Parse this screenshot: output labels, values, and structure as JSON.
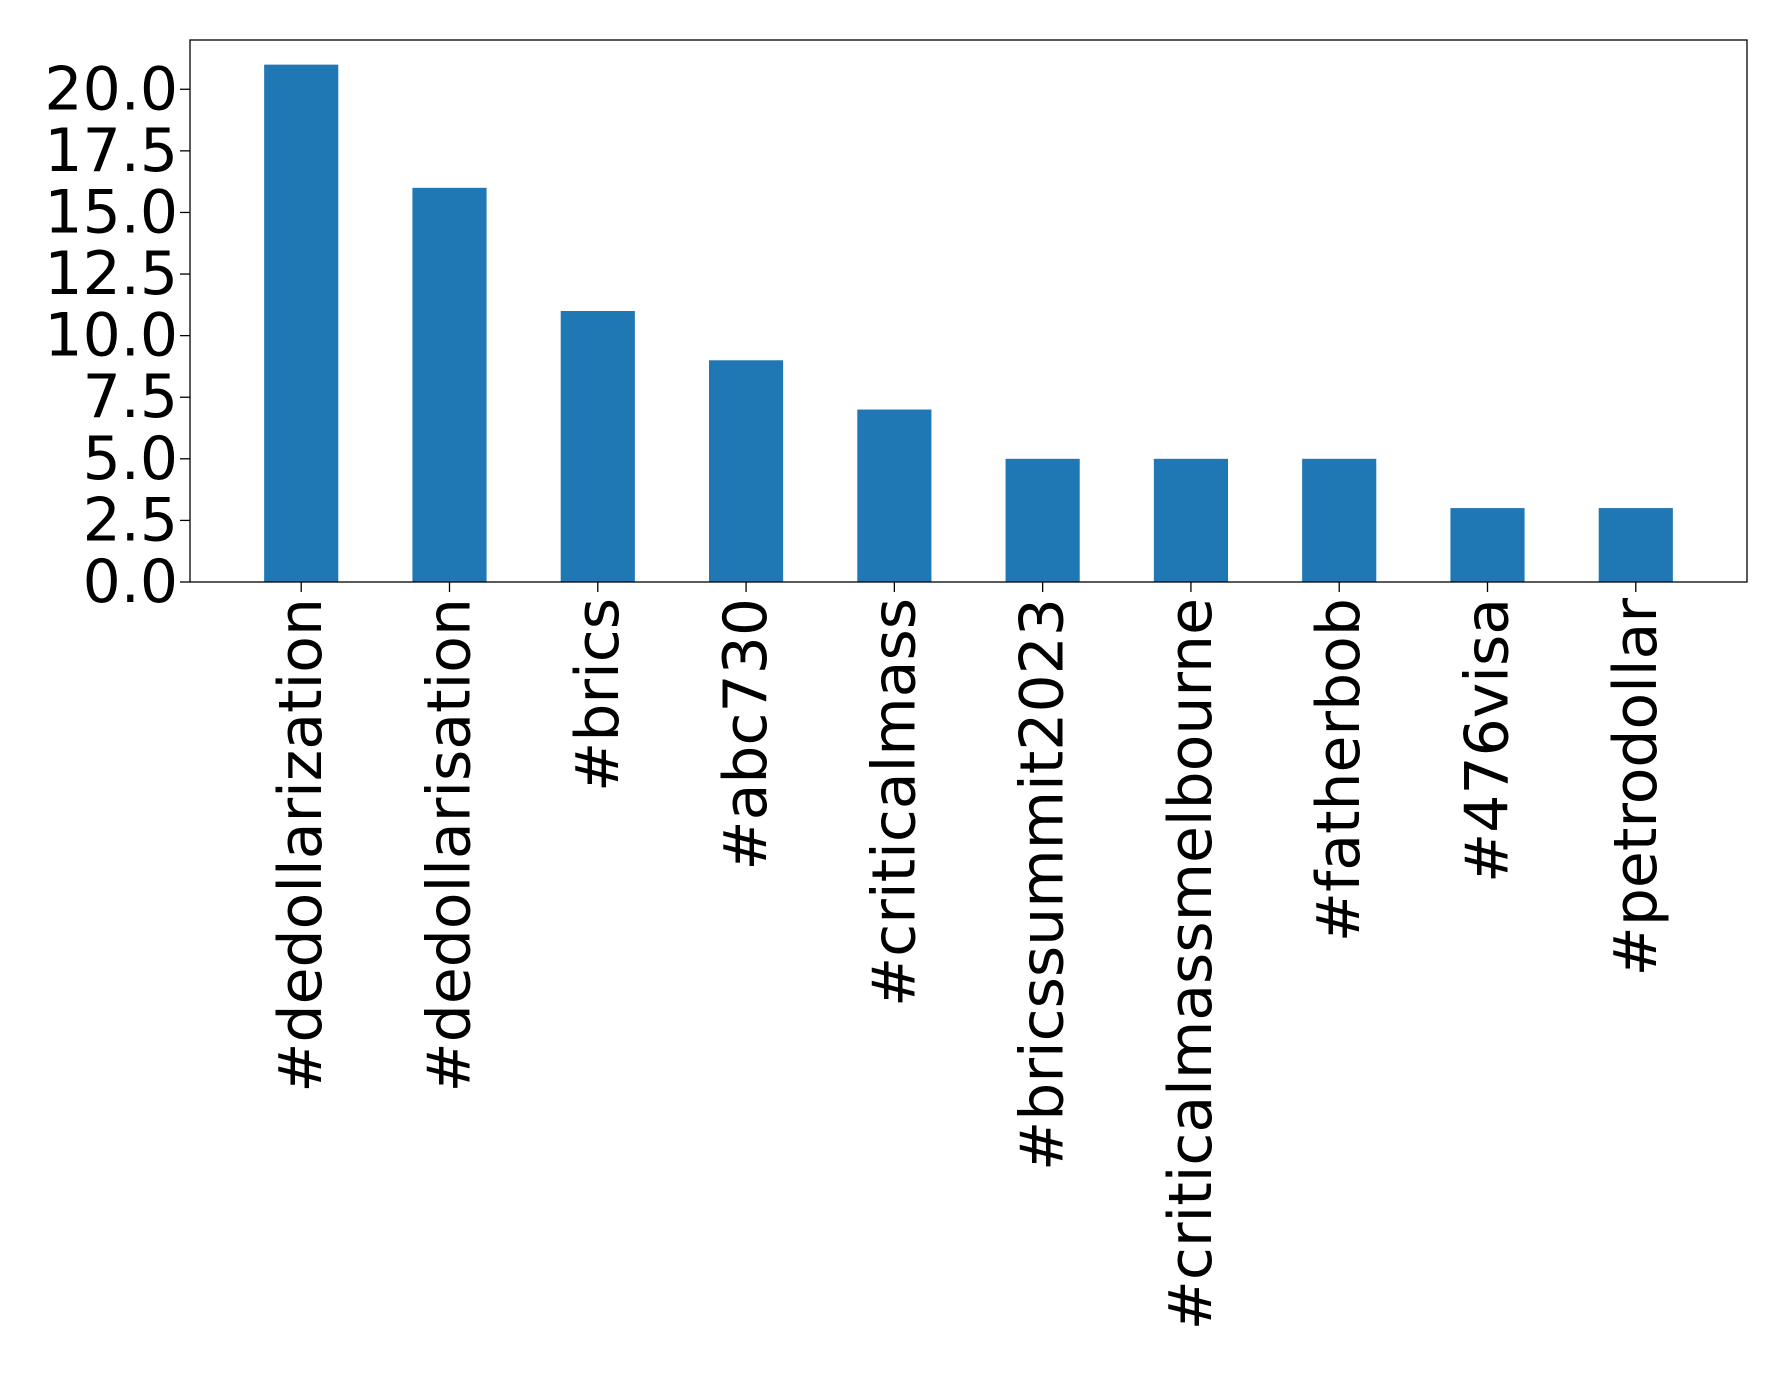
{
  "chart_data": {
    "type": "bar",
    "title": "",
    "xlabel": "",
    "ylabel": "",
    "categories": [
      "#dedollarization",
      "#dedollarisation",
      "#brics",
      "#abc730",
      "#criticalmass",
      "#bricssummit2023",
      "#criticalmassmelbourne",
      "#fatherbob",
      "#476visa",
      "#petrodollar"
    ],
    "values": [
      21,
      16,
      11,
      9,
      7,
      5,
      5,
      5,
      3,
      3
    ],
    "ylim": [
      0,
      22
    ],
    "yticks": [
      "0.0",
      "2.5",
      "5.0",
      "7.5",
      "10.0",
      "12.5",
      "15.0",
      "17.5",
      "20.0"
    ],
    "grid": false,
    "legend": "none",
    "bar_color": "#1f77b4"
  }
}
